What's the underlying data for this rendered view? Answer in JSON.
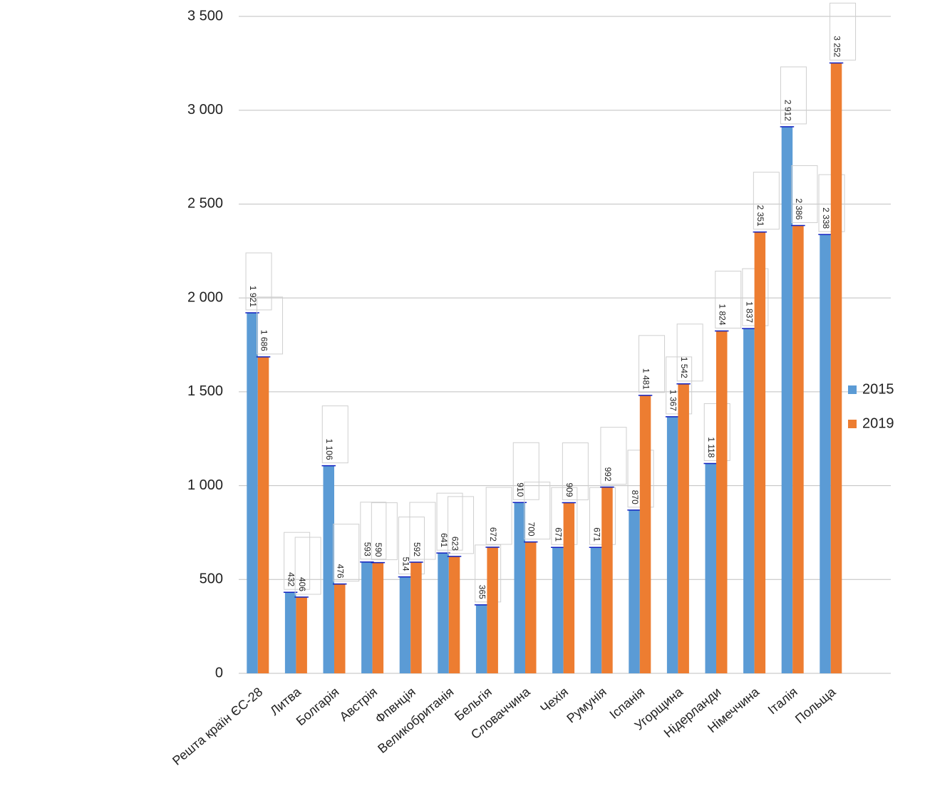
{
  "chart_data": {
    "type": "bar",
    "categories": [
      "Решта країн ЄС-28",
      "Литва",
      "Болгарія",
      "Австрія",
      "Фпвнція",
      "Великобританія",
      "Бельгія",
      "Словаччина",
      "Чехія",
      "Румунія",
      "Іспанія",
      "Угорщина",
      "Нідерланди",
      "Німеччина",
      "Італія",
      "Польща"
    ],
    "series": [
      {
        "name": "2015",
        "color": "#5b9bd5",
        "values": [
          1921,
          432,
          1106,
          593,
          514,
          641,
          365,
          910,
          671,
          671,
          870,
          1367,
          1118,
          1837,
          2912,
          2338
        ],
        "value_labels": [
          "1 921",
          "432",
          "1 106",
          "593",
          "514",
          "641",
          "365",
          "910",
          "671",
          "671",
          "870",
          "1 367",
          "1 118",
          "1 837",
          "2 912",
          "2 338"
        ]
      },
      {
        "name": "2019",
        "color": "#ed7d31",
        "values": [
          1686,
          406,
          476,
          590,
          592,
          623,
          672,
          700,
          909,
          992,
          1481,
          1542,
          1824,
          2351,
          2386,
          3252
        ],
        "value_labels": [
          "1 686",
          "406",
          "476",
          "590",
          "592",
          "623",
          "672",
          "700",
          "909",
          "992",
          "1 481",
          "1 542",
          "1 824",
          "2 351",
          "2 386",
          "3 252"
        ]
      }
    ],
    "ylim": [
      0,
      3500
    ],
    "yticks": [
      0,
      500,
      {
        "value": 1000,
        "label": "1 000"
      },
      {
        "value": 1500,
        "label": "1 500"
      },
      {
        "value": 2000,
        "label": "2 000"
      },
      {
        "value": 2500,
        "label": "2 500"
      },
      {
        "value": 3000,
        "label": "3 000"
      },
      {
        "value": 3500,
        "label": "3 500"
      }
    ],
    "grid": true,
    "legend": "right"
  }
}
